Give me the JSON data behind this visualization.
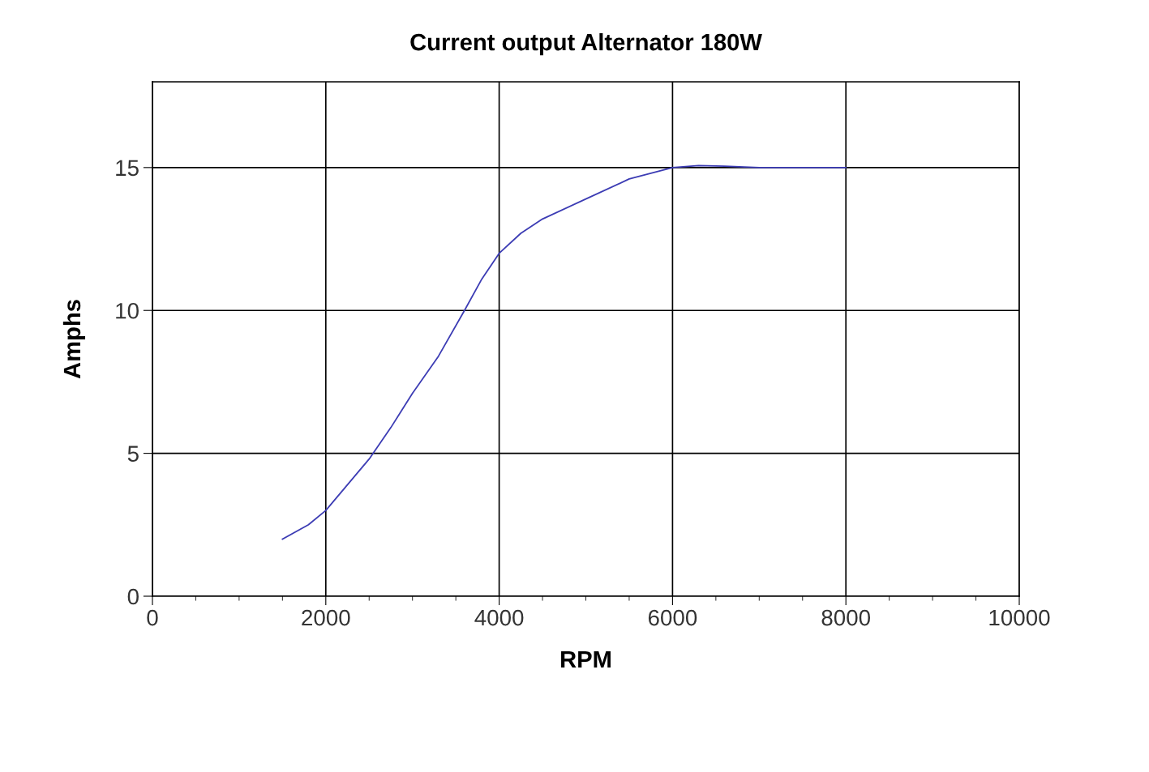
{
  "chart_data": {
    "type": "line",
    "title": "Current output Alternator 180W",
    "xlabel": "RPM",
    "ylabel": "Amphs",
    "x": [
      1500,
      1800,
      2000,
      2250,
      2500,
      2750,
      3000,
      3300,
      3600,
      3800,
      4000,
      4250,
      4500,
      5000,
      5500,
      6000,
      6300,
      6600,
      7000,
      7500,
      8000
    ],
    "series": [
      {
        "color": "#3c3cb4",
        "values": [
          2.0,
          2.5,
          3.0,
          3.9,
          4.8,
          5.9,
          7.1,
          8.4,
          10.0,
          11.1,
          12.0,
          12.7,
          13.2,
          13.9,
          14.6,
          15.0,
          15.07,
          15.05,
          15.0,
          15.0,
          15.0
        ]
      }
    ],
    "xlim": [
      0,
      10000
    ],
    "ylim": [
      0,
      18
    ],
    "xticks": [
      0,
      2000,
      4000,
      6000,
      8000,
      10000,
      {
        "value": 500,
        "label": null
      },
      {
        "value": 1000,
        "label": null
      },
      {
        "value": 1500,
        "label": null
      },
      {
        "value": 2500,
        "label": null
      },
      {
        "value": 3000,
        "label": null
      },
      {
        "value": 3500,
        "label": null
      },
      {
        "value": 4500,
        "label": null
      },
      {
        "value": 5000,
        "label": null
      },
      {
        "value": 5500,
        "label": null
      },
      {
        "value": 6500,
        "label": null
      },
      {
        "value": 7000,
        "label": null
      },
      {
        "value": 7500,
        "label": null
      },
      {
        "value": 8500,
        "label": null
      },
      {
        "value": 9000,
        "label": null
      },
      {
        "value": 9500,
        "label": null
      }
    ],
    "yticks": [
      0,
      5,
      10,
      15
    ],
    "grid": true,
    "marker": "none",
    "line_style": "solid",
    "legend": false
  }
}
